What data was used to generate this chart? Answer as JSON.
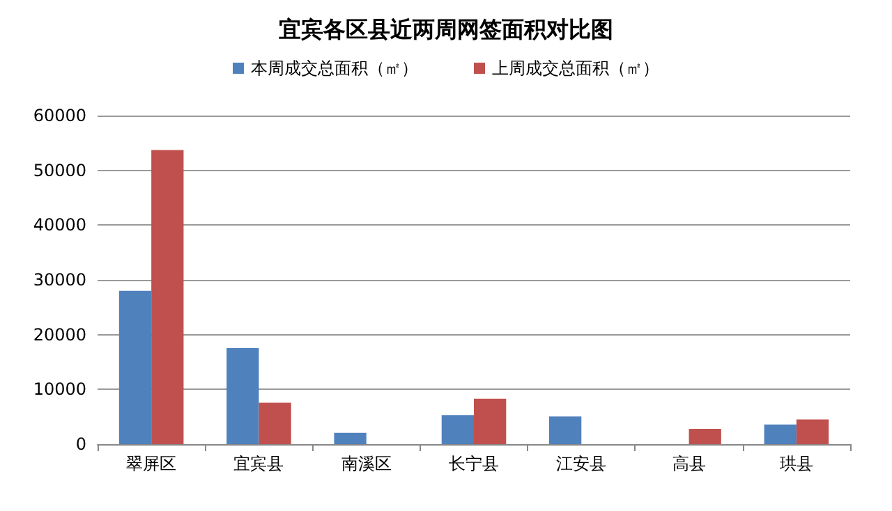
{
  "chart_data": {
    "type": "bar",
    "title": "宜宾各区县近两周网签面积对比图",
    "categories": [
      "翠屏区",
      "宜宾县",
      "南溪区",
      "长宁县",
      "江安县",
      "高县",
      "珙县"
    ],
    "series": [
      {
        "name": "本周成交总面积（㎡）",
        "color": "#4f81bd",
        "values": [
          28000,
          17550,
          2050,
          5300,
          5050,
          null,
          3600
        ]
      },
      {
        "name": "上周成交总面积（㎡）",
        "color": "#c0504d",
        "values": [
          53700,
          7550,
          0,
          8300,
          0,
          2800,
          4500
        ]
      }
    ],
    "ylim": [
      0,
      60000
    ],
    "yticks": [
      0,
      10000,
      20000,
      30000,
      40000,
      50000,
      60000
    ],
    "grid": "y",
    "legend": "top"
  }
}
